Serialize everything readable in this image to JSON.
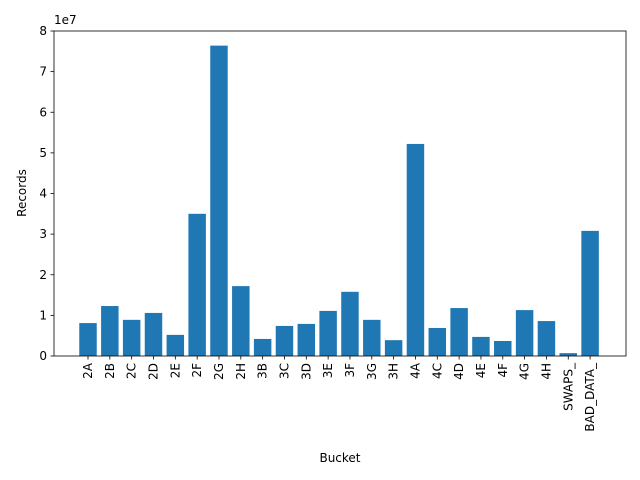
{
  "chart_data": {
    "type": "bar",
    "x_label": "Bucket",
    "y_label": "Records",
    "y_offset_label": "1e7",
    "categories": [
      "2A",
      "2B",
      "2C",
      "2D",
      "2E",
      "2F",
      "2G",
      "2H",
      "3B",
      "3C",
      "3D",
      "3E",
      "3F",
      "3G",
      "3H",
      "4A",
      "4C",
      "4D",
      "4E",
      "4F",
      "4G",
      "4H",
      "SWAPS_",
      "BAD_DATA_"
    ],
    "values": [
      8100000,
      12300000,
      8900000,
      10600000,
      5200000,
      35000000,
      76400000,
      17200000,
      4200000,
      7400000,
      7900000,
      11100000,
      15800000,
      8900000,
      3900000,
      52200000,
      6900000,
      11800000,
      4700000,
      3700000,
      11300000,
      8600000,
      700000,
      30800000
    ],
    "color": "#1f77b4",
    "ylim": [
      0,
      80000000
    ],
    "yticks": [
      {
        "value": 0,
        "label": "0"
      },
      {
        "value": 10000000,
        "label": "1"
      },
      {
        "value": 20000000,
        "label": "2"
      },
      {
        "value": 30000000,
        "label": "3"
      },
      {
        "value": 40000000,
        "label": "4"
      },
      {
        "value": 50000000,
        "label": "5"
      },
      {
        "value": 60000000,
        "label": "6"
      },
      {
        "value": 70000000,
        "label": "7"
      },
      {
        "value": 80000000,
        "label": "8"
      }
    ]
  }
}
